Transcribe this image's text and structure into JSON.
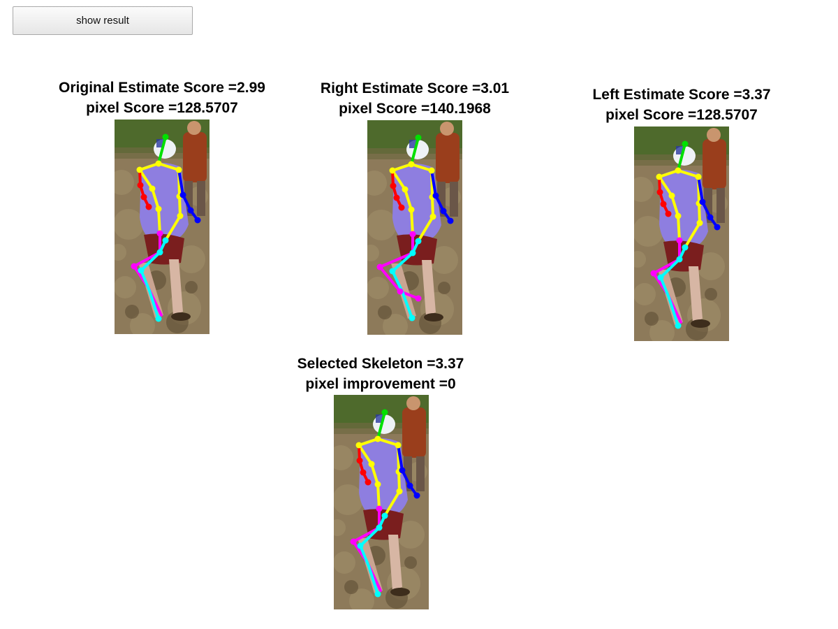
{
  "toolbar": {
    "show_result_label": "show result"
  },
  "panels": [
    {
      "line1": "Original Estimate Score =2.99",
      "line2": "pixel Score =128.5707",
      "variant": "original"
    },
    {
      "line1": "Right Estimate Score =3.01",
      "line2": "pixel Score =140.1968",
      "variant": "right"
    },
    {
      "line1": "Left Estimate Score =3.37",
      "line2": "pixel Score =128.5707",
      "variant": "left"
    },
    {
      "line1": "Selected Skeleton =3.37",
      "line2": "pixel improvement =0",
      "variant": "left"
    }
  ],
  "colors": {
    "head": "#00e000",
    "torso": "#ffff00",
    "right_arm": "#ff0000",
    "left_arm": "#0000ff",
    "right_leg": "#ff00ff",
    "left_leg": "#00ffff"
  }
}
